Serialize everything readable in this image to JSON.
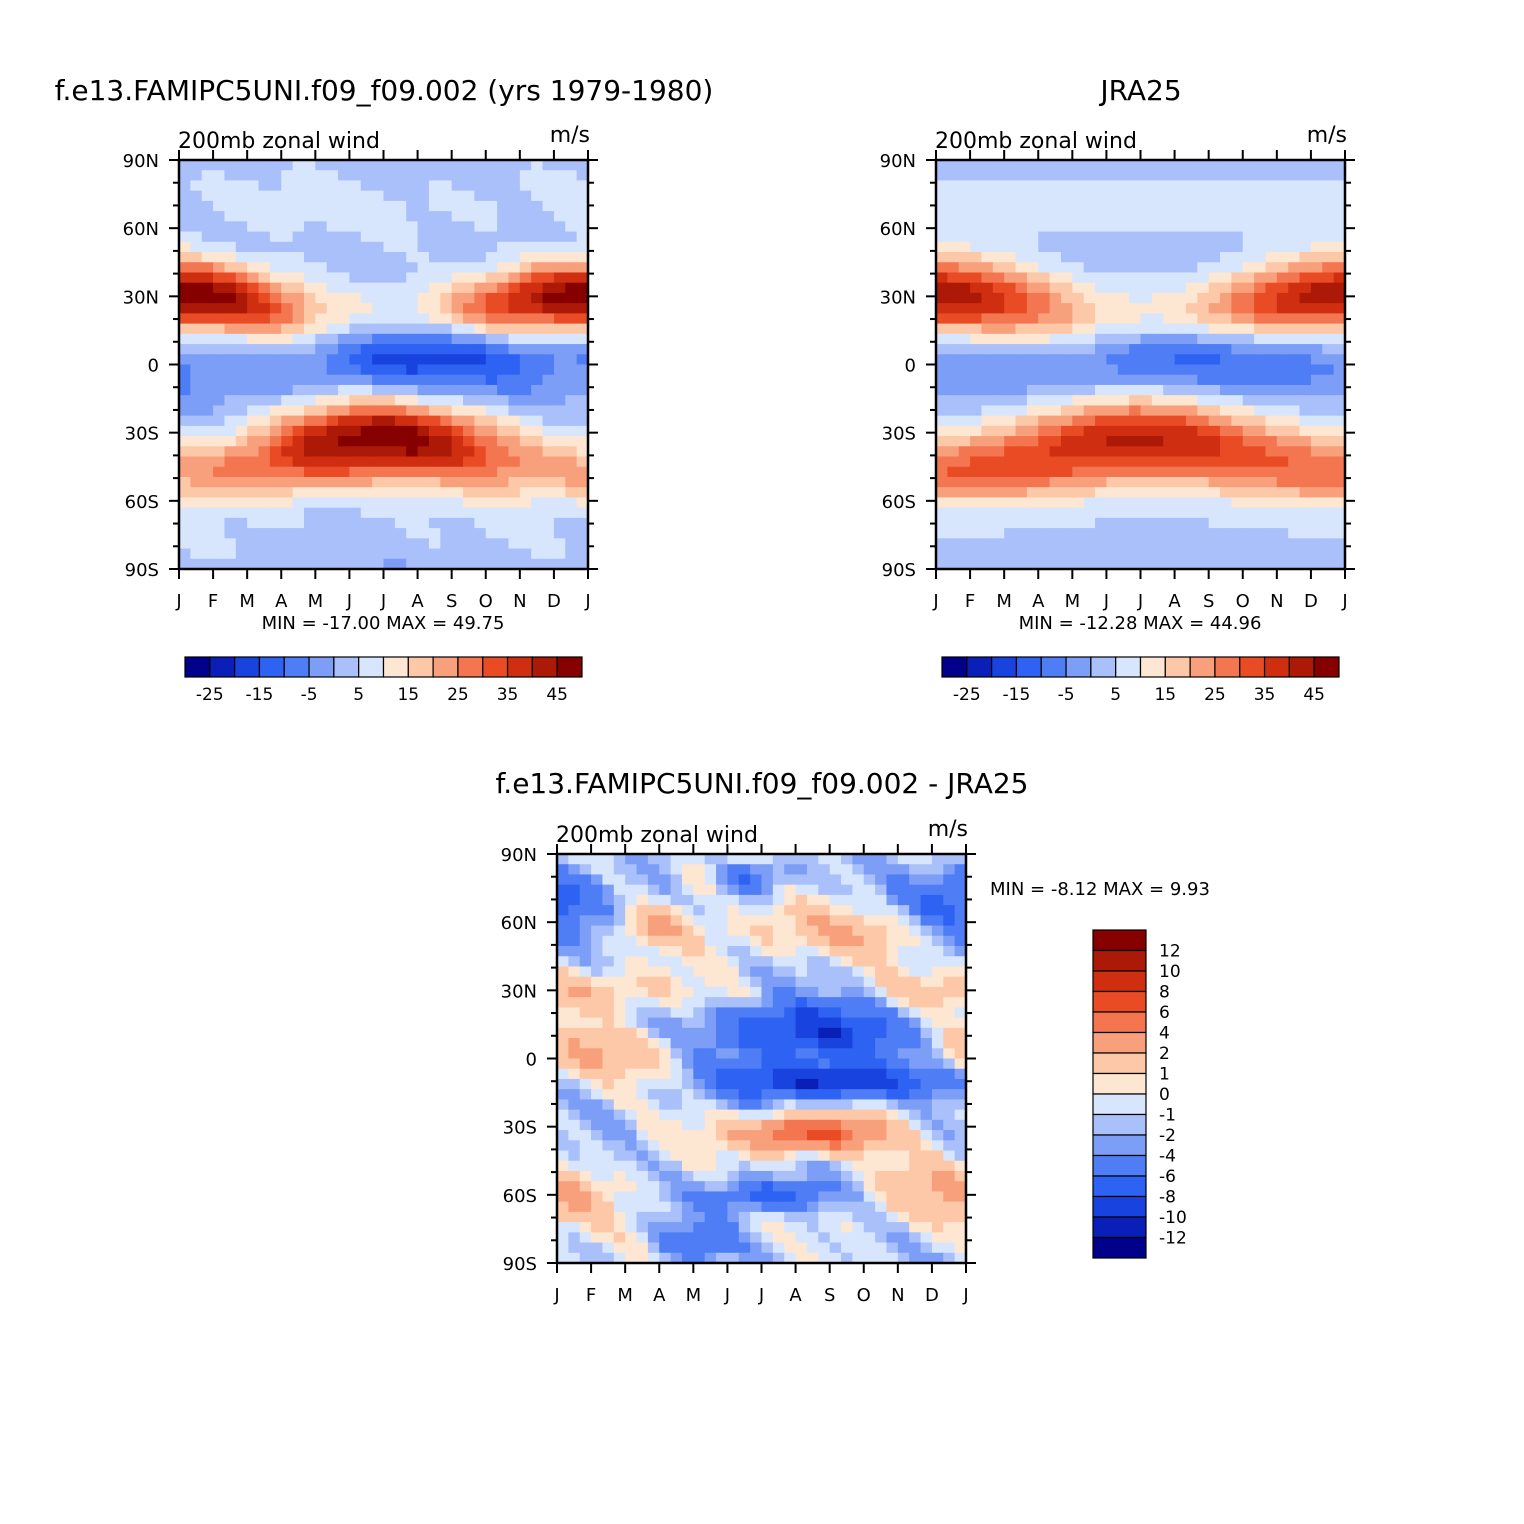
{
  "chart_data": [
    {
      "type": "heatmap",
      "title": "f.e13.FAMIPC5UNI.f09_f09.002 (yrs 1979-1980)",
      "left_string": "200mb  zonal  wind",
      "right_string": "m/s",
      "x_ticks": [
        "J",
        "F",
        "M",
        "A",
        "M",
        "J",
        "J",
        "A",
        "S",
        "O",
        "N",
        "D",
        "J"
      ],
      "y_ticks": [
        "90N",
        "60N",
        "30N",
        "0",
        "30S",
        "60S",
        "90S"
      ],
      "stats_text": "MIN =  -17.00  MAX =    49.75",
      "min": -17.0,
      "max": 49.75,
      "colorbar": {
        "orientation": "horizontal",
        "labels": [
          "-25",
          "-15",
          "-5",
          "5",
          "15",
          "25",
          "35",
          "45"
        ],
        "levels": [
          -30,
          -25,
          -20,
          -15,
          -10,
          -5,
          0,
          5,
          10,
          15,
          20,
          25,
          30,
          35,
          40,
          45
        ],
        "colors": [
          "#00008b",
          "#0a1fb8",
          "#1843de",
          "#2e62f2",
          "#4e7df5",
          "#7c9ef7",
          "#a9c0fa",
          "#d7e6fd",
          "#fde6d2",
          "#fcc8a8",
          "#f8a07c",
          "#f47650",
          "#e94b25",
          "#cf2f10",
          "#ac1906",
          "#870000"
        ]
      },
      "features": [
        {
          "type": "jet",
          "lat": 30,
          "peak_month": 1,
          "amp": 49.75,
          "width": 12,
          "note": "NH subtropical jet, winter max"
        },
        {
          "type": "jet",
          "lat": -32,
          "peak_month": 7,
          "amp": 48,
          "width": 11,
          "note": "SH subtropical jet, winter max"
        },
        {
          "type": "easterly",
          "lat": 5,
          "peak_month": 7.5,
          "amp": -17.0,
          "note": "tropical easterlies, boreal summer"
        }
      ]
    },
    {
      "type": "heatmap",
      "title": "JRA25",
      "left_string": "200mb  zonal  wind",
      "right_string": "m/s",
      "x_ticks": [
        "J",
        "F",
        "M",
        "A",
        "M",
        "J",
        "J",
        "A",
        "S",
        "O",
        "N",
        "D",
        "J"
      ],
      "y_ticks": [
        "90N",
        "60N",
        "30N",
        "0",
        "30S",
        "60S",
        "90S"
      ],
      "stats_text": "MIN =  -12.28  MAX =    44.96",
      "min": -12.28,
      "max": 44.96,
      "colorbar": {
        "orientation": "horizontal",
        "labels": [
          "-25",
          "-15",
          "-5",
          "5",
          "15",
          "25",
          "35",
          "45"
        ],
        "levels": [
          -30,
          -25,
          -20,
          -15,
          -10,
          -5,
          0,
          5,
          10,
          15,
          20,
          25,
          30,
          35,
          40,
          45
        ],
        "colors": [
          "#00008b",
          "#0a1fb8",
          "#1843de",
          "#2e62f2",
          "#4e7df5",
          "#7c9ef7",
          "#a9c0fa",
          "#d7e6fd",
          "#fde6d2",
          "#fcc8a8",
          "#f8a07c",
          "#f47650",
          "#e94b25",
          "#cf2f10",
          "#ac1906",
          "#870000"
        ]
      },
      "features": [
        {
          "type": "jet",
          "lat": 30,
          "peak_month": 1,
          "amp": 44.96,
          "width": 13,
          "note": "NH subtropical jet"
        },
        {
          "type": "jet",
          "lat": -30,
          "peak_month": 7,
          "amp": 40,
          "width": 12,
          "note": "SH subtropical jet"
        },
        {
          "type": "easterly",
          "lat": 5,
          "peak_month": 7.5,
          "amp": -12.28,
          "note": "tropical easterlies"
        }
      ]
    },
    {
      "type": "heatmap",
      "title": "f.e13.FAMIPC5UNI.f09_f09.002 - JRA25",
      "left_string": "200mb  zonal  wind",
      "right_string": "m/s",
      "x_ticks": [
        "J",
        "F",
        "M",
        "A",
        "M",
        "J",
        "J",
        "A",
        "S",
        "O",
        "N",
        "D",
        "J"
      ],
      "y_ticks": [
        "90N",
        "60N",
        "30N",
        "0",
        "30S",
        "60S",
        "90S"
      ],
      "stats_text": "MIN =   -8.12  MAX =     9.93",
      "min": -8.12,
      "max": 9.93,
      "colorbar": {
        "orientation": "vertical",
        "labels": [
          "12",
          "10",
          "8",
          "6",
          "4",
          "2",
          "1",
          "0",
          "-1",
          "-2",
          "-4",
          "-6",
          "-8",
          "-10",
          "-12"
        ],
        "levels": [
          -12,
          -10,
          -8,
          -6,
          -4,
          -2,
          -1,
          0,
          1,
          2,
          4,
          6,
          8,
          10,
          12
        ],
        "colors": [
          "#00008b",
          "#0a1fb8",
          "#1843de",
          "#2e62f2",
          "#4e7df5",
          "#7c9ef7",
          "#a9c0fa",
          "#d7e6fd",
          "#fde6d2",
          "#fcc8a8",
          "#f8a07c",
          "#f47650",
          "#e94b25",
          "#cf2f10",
          "#ac1906",
          "#870000"
        ]
      }
    }
  ]
}
